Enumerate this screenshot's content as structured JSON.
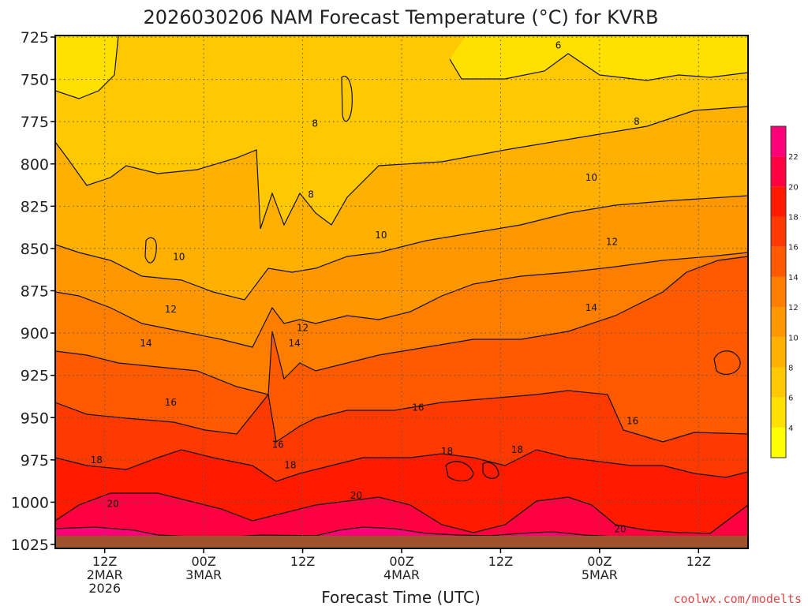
{
  "chart_data": {
    "type": "heatmap",
    "title": "2026030206 NAM Forecast Temperature (°C) for KVRB",
    "xlabel": "Forecast Time (UTC)",
    "ylabel": "",
    "y_axis": {
      "scale": "pressure (reversed)",
      "range": [
        725,
        1025
      ],
      "ticks": [
        "725",
        "750",
        "775",
        "800",
        "825",
        "850",
        "875",
        "900",
        "925",
        "950",
        "975",
        "1000",
        "1025"
      ]
    },
    "x_axis": {
      "range_hours": [
        0,
        84
      ],
      "ticks": [
        {
          "hour": 6,
          "lines": [
            "12Z",
            "2MAR",
            "2026"
          ]
        },
        {
          "hour": 18,
          "lines": [
            "00Z",
            "3MAR"
          ]
        },
        {
          "hour": 30,
          "lines": [
            "12Z"
          ]
        },
        {
          "hour": 42,
          "lines": [
            "00Z",
            "4MAR"
          ]
        },
        {
          "hour": 54,
          "lines": [
            "12Z"
          ]
        },
        {
          "hour": 66,
          "lines": [
            "00Z",
            "5MAR"
          ]
        },
        {
          "hour": 78,
          "lines": [
            "12Z"
          ]
        }
      ]
    },
    "grid": true,
    "colorbar": {
      "placement": "right",
      "levels": [
        4,
        6,
        8,
        10,
        12,
        14,
        16,
        18,
        20,
        22
      ],
      "tick_labels": [
        "4",
        "6",
        "8",
        "10",
        "12",
        "14",
        "16",
        "18",
        "20",
        "22"
      ],
      "colors": [
        "#ffff00",
        "#ffe000",
        "#ffc800",
        "#ffb000",
        "#ff9800",
        "#ff7e00",
        "#ff5a00",
        "#ff3a00",
        "#ff1a00",
        "#ff0040",
        "#ff0078"
      ]
    },
    "contour_labels": [
      {
        "text": "6",
        "hour": 61.0,
        "p": 730
      },
      {
        "text": "8",
        "hour": 31.5,
        "p": 776
      },
      {
        "text": "8",
        "hour": 70.5,
        "p": 775
      },
      {
        "text": "8",
        "hour": 31.0,
        "p": 818
      },
      {
        "text": "10",
        "hour": 65.0,
        "p": 808
      },
      {
        "text": "10",
        "hour": 39.5,
        "p": 842
      },
      {
        "text": "10",
        "hour": 15.0,
        "p": 855
      },
      {
        "text": "12",
        "hour": 67.5,
        "p": 846
      },
      {
        "text": "12",
        "hour": 14.0,
        "p": 886
      },
      {
        "text": "12",
        "hour": 30.0,
        "p": 897
      },
      {
        "text": "14",
        "hour": 65.0,
        "p": 885
      },
      {
        "text": "14",
        "hour": 11.0,
        "p": 906
      },
      {
        "text": "14",
        "hour": 29.0,
        "p": 906
      },
      {
        "text": "16",
        "hour": 14.0,
        "p": 941
      },
      {
        "text": "16",
        "hour": 44.0,
        "p": 944
      },
      {
        "text": "16",
        "hour": 70.0,
        "p": 952
      },
      {
        "text": "16",
        "hour": 27.0,
        "p": 966
      },
      {
        "text": "18",
        "hour": 5.0,
        "p": 975
      },
      {
        "text": "18",
        "hour": 28.5,
        "p": 978
      },
      {
        "text": "18",
        "hour": 47.5,
        "p": 970
      },
      {
        "text": "18",
        "hour": 56.0,
        "p": 969
      },
      {
        "text": "20",
        "hour": 7.0,
        "p": 1001
      },
      {
        "text": "20",
        "hour": 36.5,
        "p": 996
      },
      {
        "text": "20",
        "hour": 68.5,
        "p": 1016
      }
    ]
  },
  "footer": {
    "credit": "coolwx.com/modelts"
  },
  "colors": {
    "ground": "#a0522d",
    "grid": "#555555",
    "contour": "#111111"
  }
}
